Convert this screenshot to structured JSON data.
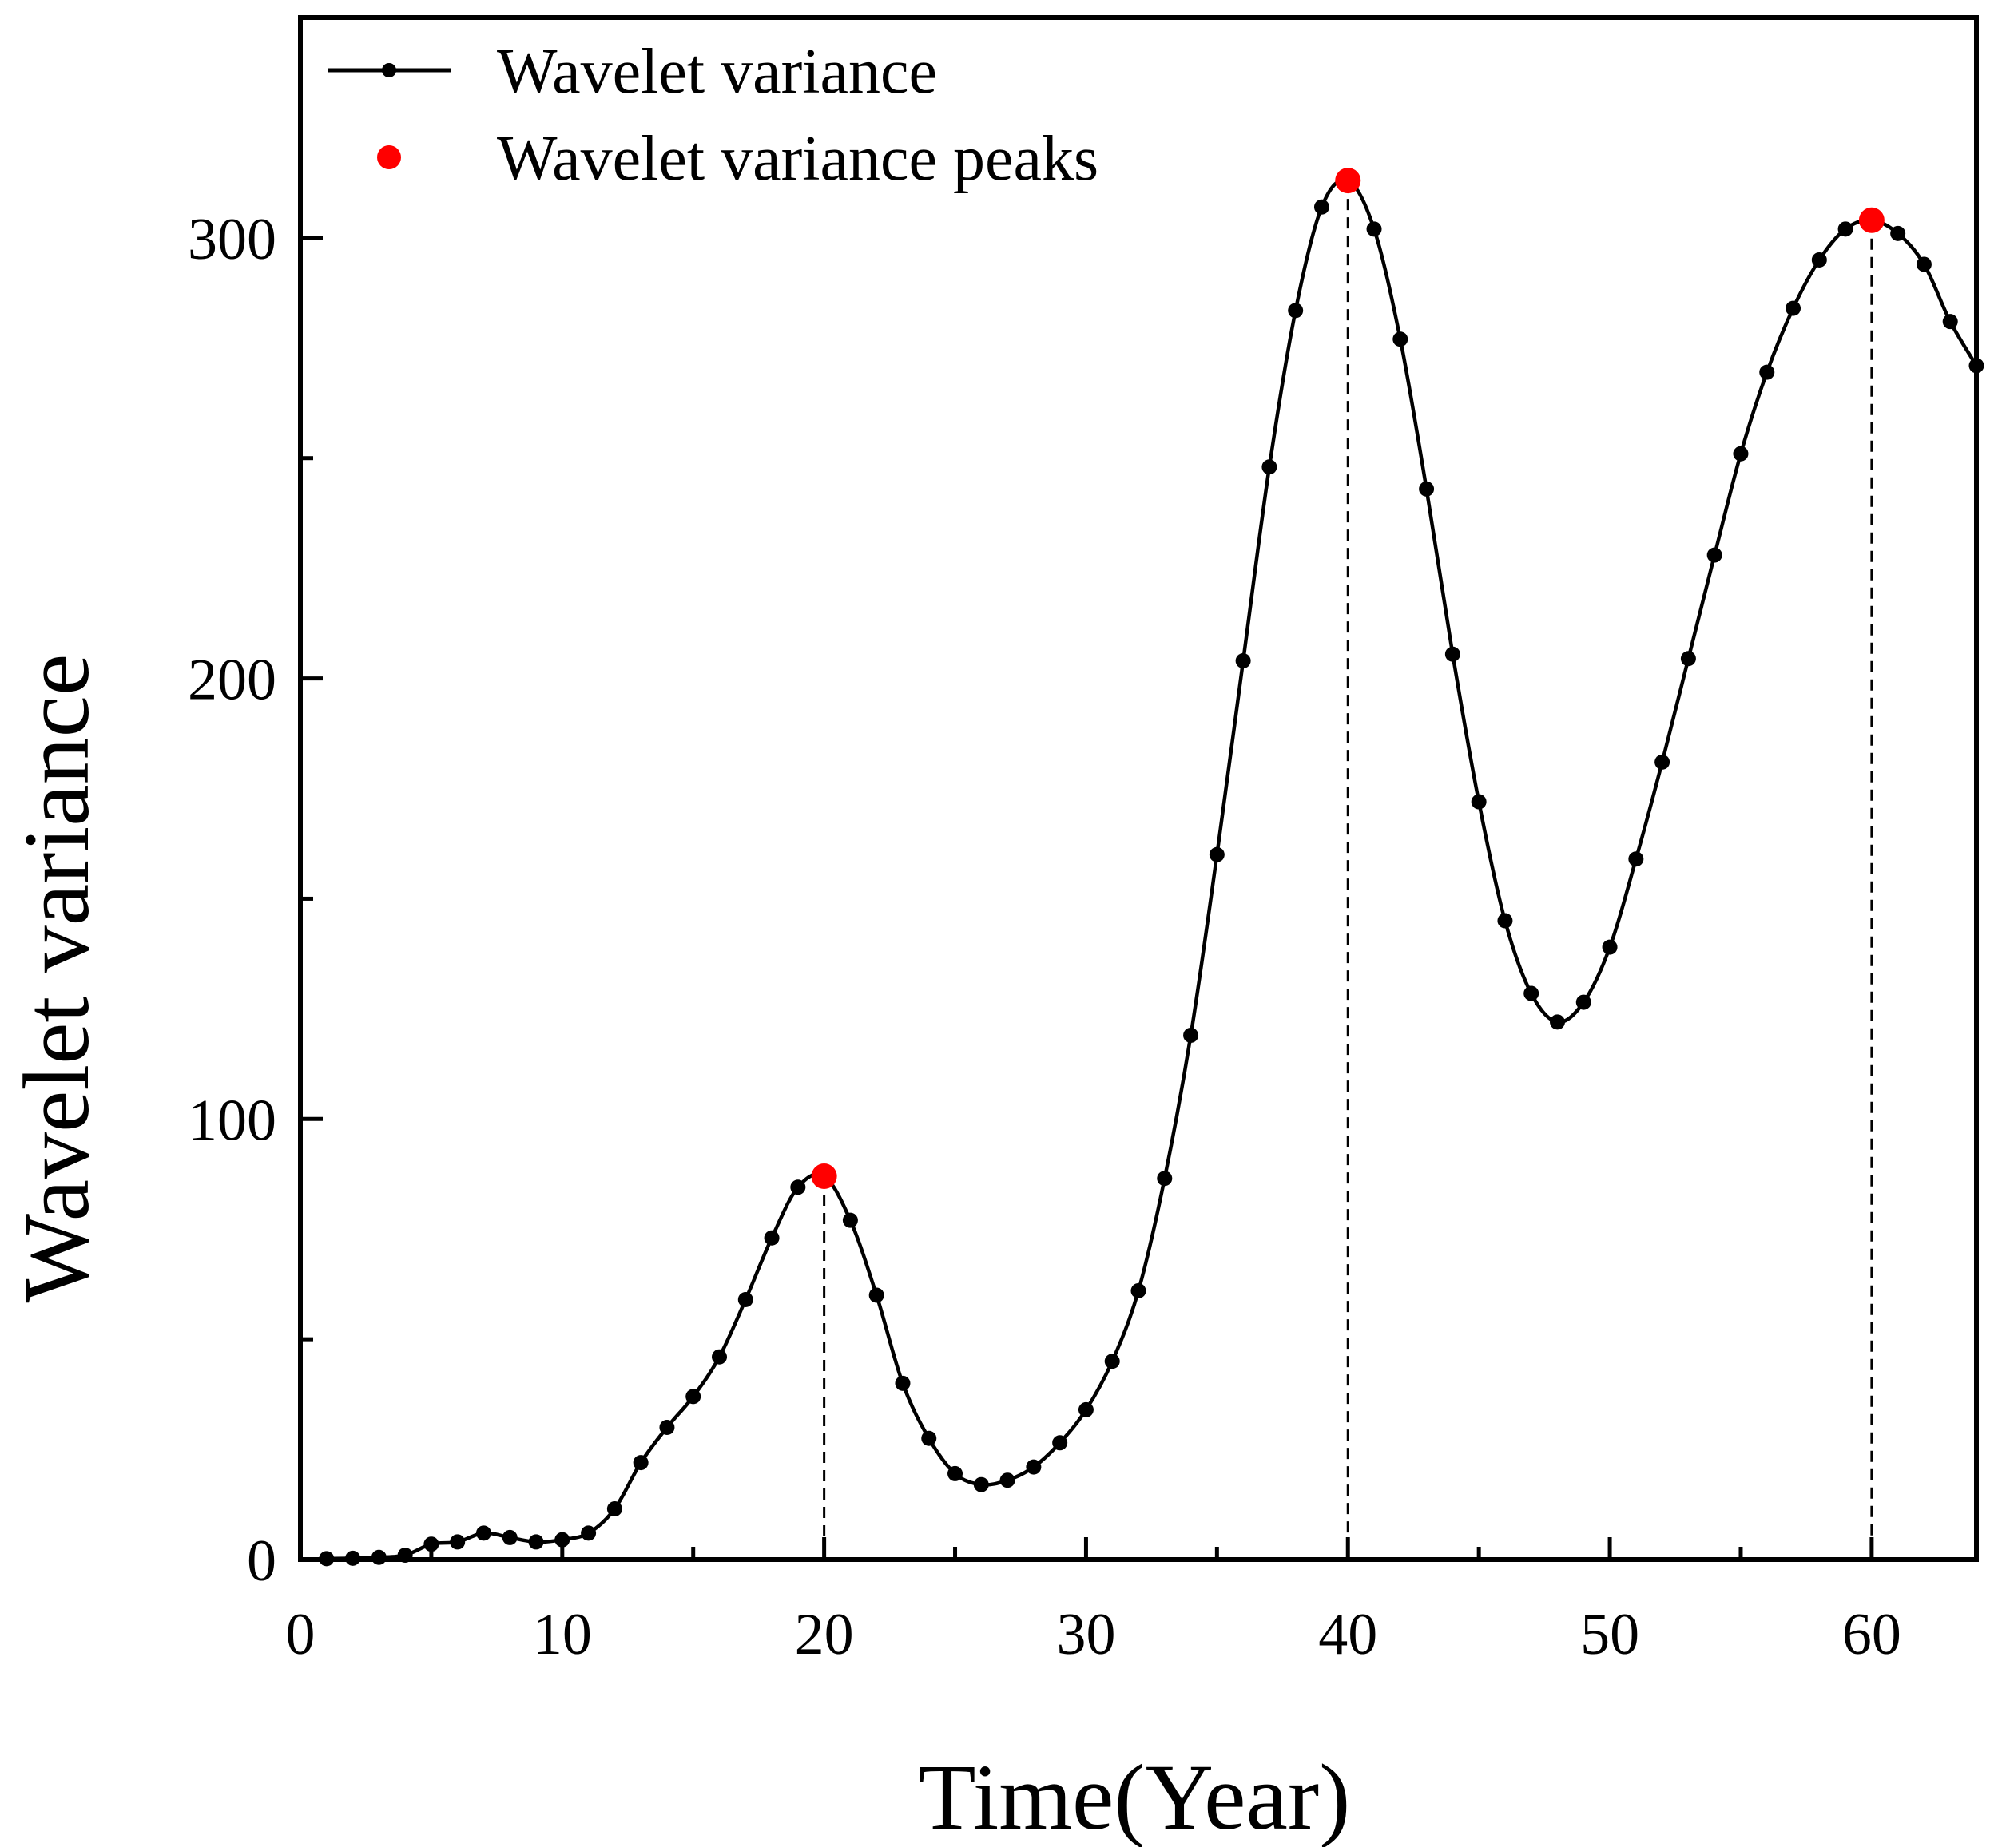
{
  "chart_data": {
    "type": "line",
    "title": "",
    "xlabel": "Time(Year)",
    "ylabel": "Wavelet variance",
    "xlim": [
      0,
      64
    ],
    "ylim": [
      0,
      350
    ],
    "x_ticks": [
      0,
      10,
      20,
      30,
      40,
      50,
      60
    ],
    "y_ticks": [
      0,
      100,
      200,
      300
    ],
    "y_minor_ticks": [
      50,
      150,
      250
    ],
    "x_minor_ticks": [
      5,
      15,
      25,
      35,
      45,
      55
    ],
    "grid": false,
    "legend_position": "top-left",
    "series": [
      {
        "name": "Wavelet variance",
        "color": "#000000",
        "marker": "circle",
        "x": [
          1,
          2,
          3,
          4,
          5,
          6,
          7,
          8,
          9,
          10,
          11,
          12,
          13,
          14,
          15,
          16,
          17,
          18,
          19,
          20,
          21,
          22,
          23,
          24,
          25,
          26,
          27,
          28,
          29,
          30,
          31,
          32,
          33,
          34,
          35,
          36,
          37,
          38,
          39,
          40,
          41,
          42,
          43,
          44,
          45,
          46,
          47,
          48,
          49,
          50,
          51,
          52,
          53,
          54,
          55,
          56,
          57,
          58,
          59,
          60,
          61,
          62,
          63,
          64
        ],
        "values": [
          0.2,
          0.3,
          0.5,
          1,
          3.5,
          4,
          6,
          5,
          4,
          4.5,
          6,
          11.5,
          22,
          30,
          37,
          46,
          59,
          73,
          84.5,
          87,
          77,
          60,
          40,
          27.5,
          19.5,
          17,
          18,
          21,
          26.5,
          34,
          45,
          61,
          86.5,
          119,
          160,
          204,
          248,
          283.5,
          307,
          313,
          302,
          277,
          243,
          205.5,
          172,
          145,
          128.5,
          122,
          126.5,
          139,
          159,
          181,
          204.5,
          228,
          251,
          269.5,
          284,
          295,
          302,
          304,
          301,
          294,
          281,
          271
        ]
      },
      {
        "name": "Wavelet variance peaks",
        "color": "#ff0000",
        "marker": "circle",
        "x": [
          20,
          40,
          60
        ],
        "values": [
          87,
          313,
          304
        ]
      }
    ]
  }
}
